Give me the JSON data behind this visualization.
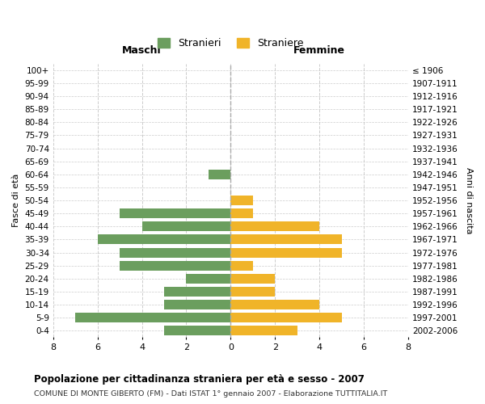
{
  "age_groups": [
    "100+",
    "95-99",
    "90-94",
    "85-89",
    "80-84",
    "75-79",
    "70-74",
    "65-69",
    "60-64",
    "55-59",
    "50-54",
    "45-49",
    "40-44",
    "35-39",
    "30-34",
    "25-29",
    "20-24",
    "15-19",
    "10-14",
    "5-9",
    "0-4"
  ],
  "birth_years": [
    "≤ 1906",
    "1907-1911",
    "1912-1916",
    "1917-1921",
    "1922-1926",
    "1927-1931",
    "1932-1936",
    "1937-1941",
    "1942-1946",
    "1947-1951",
    "1952-1956",
    "1957-1961",
    "1962-1966",
    "1967-1971",
    "1972-1976",
    "1977-1981",
    "1982-1986",
    "1987-1991",
    "1992-1996",
    "1997-2001",
    "2002-2006"
  ],
  "maschi": [
    0,
    0,
    0,
    0,
    0,
    0,
    0,
    0,
    1,
    0,
    0,
    5,
    4,
    6,
    5,
    5,
    2,
    3,
    3,
    7,
    3
  ],
  "femmine": [
    0,
    0,
    0,
    0,
    0,
    0,
    0,
    0,
    0,
    0,
    1,
    1,
    4,
    5,
    5,
    1,
    2,
    2,
    4,
    5,
    3
  ],
  "color_maschi": "#6b9e5e",
  "color_femmine": "#f0b429",
  "background_color": "#ffffff",
  "grid_color": "#cccccc",
  "title": "Popolazione per cittadinanza straniera per età e sesso - 2007",
  "subtitle": "COMUNE DI MONTE GIBERTO (FM) - Dati ISTAT 1° gennaio 2007 - Elaborazione TUTTITALIA.IT",
  "xlabel_left": "Maschi",
  "xlabel_right": "Femmine",
  "ylabel": "Fasce di età",
  "ylabel_right": "Anni di nascita",
  "legend_stranieri": "Stranieri",
  "legend_straniere": "Straniere",
  "xlim": 8,
  "bar_height": 0.75
}
